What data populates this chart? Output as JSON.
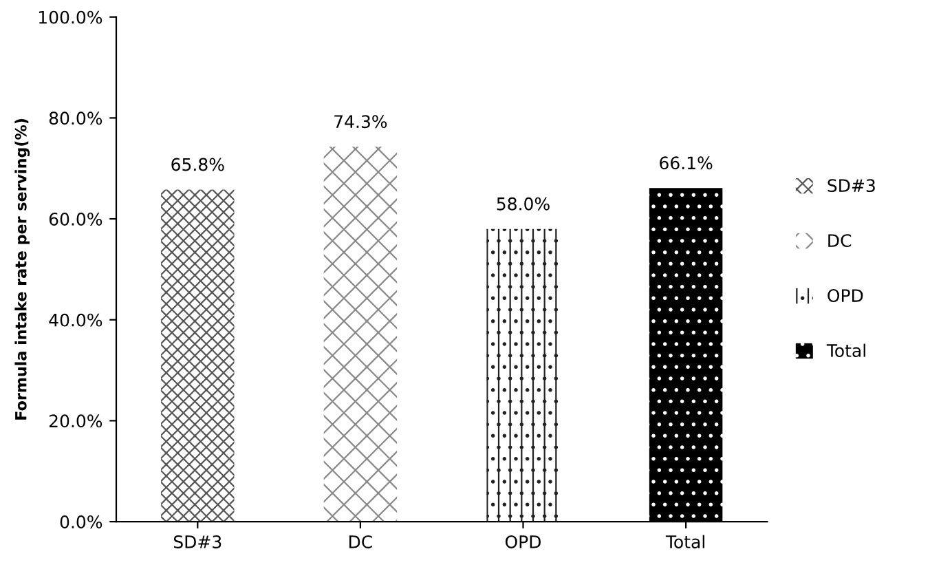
{
  "chart_data": {
    "type": "bar",
    "ylabel": "Formula intake rate per serving(%)",
    "categories": [
      "SD#3",
      "DC",
      "OPD",
      "Total"
    ],
    "series": [
      {
        "name": "SD#3",
        "color": "#555555",
        "values": [
          65.8,
          null,
          null,
          null
        ],
        "value_labels": [
          "65.8%",
          null,
          null,
          null
        ]
      },
      {
        "name": "DC",
        "color": "#888888",
        "values": [
          null,
          74.3,
          null,
          null
        ],
        "value_labels": [
          null,
          "74.3%",
          null,
          null
        ]
      },
      {
        "name": "OPD",
        "color": "#222222",
        "values": [
          null,
          null,
          58.0,
          null
        ],
        "value_labels": [
          null,
          null,
          "58.0%",
          null
        ]
      },
      {
        "name": "Total",
        "color": "#000000",
        "values": [
          null,
          null,
          null,
          66.1
        ],
        "value_labels": [
          null,
          null,
          null,
          "66.1%"
        ]
      }
    ],
    "ylim": [
      0,
      100
    ],
    "yticks": [
      {
        "value": 0,
        "label": "0.0%"
      },
      {
        "value": 20,
        "label": "20.0%"
      },
      {
        "value": 40,
        "label": "40.0%"
      },
      {
        "value": 60,
        "label": "60.0%"
      },
      {
        "value": 80,
        "label": "80.0%"
      },
      {
        "value": 100,
        "label": "100.0%"
      }
    ],
    "legend": "right",
    "grid": false
  }
}
